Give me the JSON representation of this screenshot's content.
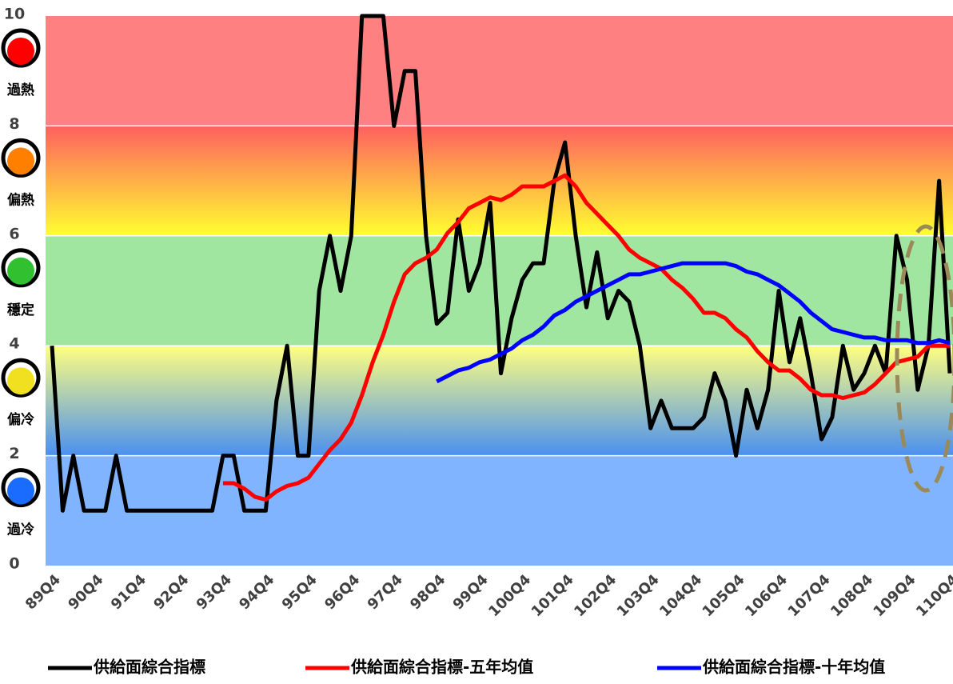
{
  "chart_data": {
    "type": "line",
    "categories": [
      "89Q4",
      null,
      null,
      null,
      "90Q4",
      null,
      null,
      null,
      "91Q4",
      null,
      null,
      null,
      "92Q4",
      null,
      null,
      null,
      "93Q4",
      null,
      null,
      null,
      "94Q4",
      null,
      null,
      null,
      "95Q4",
      null,
      null,
      null,
      "96Q4",
      null,
      null,
      null,
      "97Q4",
      null,
      null,
      null,
      "98Q4",
      null,
      null,
      null,
      "99Q4",
      null,
      null,
      null,
      "100Q4",
      null,
      null,
      null,
      "101Q4",
      null,
      null,
      null,
      "102Q4",
      null,
      null,
      null,
      "103Q4",
      null,
      null,
      null,
      "104Q4",
      null,
      null,
      null,
      "105Q4",
      null,
      null,
      null,
      "106Q4",
      null,
      null,
      null,
      "107Q4",
      null,
      null,
      null,
      "108Q4",
      null,
      null,
      null,
      "109Q4",
      null,
      null,
      null,
      "110Q4"
    ],
    "series": [
      {
        "name": "供給面綜合指標",
        "color": "#000000",
        "values": [
          4,
          1,
          2,
          1,
          1,
          1,
          2,
          1,
          1,
          1,
          1,
          1,
          1,
          1,
          1,
          1,
          2,
          2,
          1,
          1,
          1,
          3,
          4,
          2,
          2,
          5,
          6,
          5,
          6,
          10,
          10,
          10,
          8,
          9,
          9,
          6,
          4.4,
          4.6,
          6.3,
          5,
          5.5,
          6.6,
          3.5,
          4.5,
          5.2,
          5.5,
          5.5,
          7,
          7.7,
          6,
          4.7,
          5.7,
          4.5,
          5,
          4.8,
          4,
          2.5,
          3,
          2.5,
          2.5,
          2.5,
          2.7,
          3.5,
          3,
          2,
          3.2,
          2.5,
          3.2,
          5,
          3.7,
          4.5,
          3.5,
          2.3,
          2.7,
          4,
          3.2,
          3.5,
          4,
          3.5,
          6,
          5.2,
          3.2,
          4,
          7,
          3.5
        ]
      },
      {
        "name": "供給面綜合指標-五年均值",
        "color": "#ff0000",
        "values": [
          null,
          null,
          null,
          null,
          null,
          null,
          null,
          null,
          null,
          null,
          null,
          null,
          null,
          null,
          null,
          null,
          1.5,
          1.5,
          1.4,
          1.25,
          1.2,
          1.35,
          1.45,
          1.5,
          1.6,
          1.85,
          2.1,
          2.3,
          2.6,
          3.1,
          3.7,
          4.2,
          4.8,
          5.3,
          5.5,
          5.6,
          5.75,
          6.05,
          6.25,
          6.5,
          6.6,
          6.7,
          6.65,
          6.75,
          6.9,
          6.9,
          6.9,
          7.0,
          7.1,
          6.9,
          6.6,
          6.4,
          6.2,
          6.0,
          5.75,
          5.6,
          5.5,
          5.4,
          5.2,
          5.05,
          4.85,
          4.6,
          4.6,
          4.5,
          4.3,
          4.15,
          3.9,
          3.7,
          3.55,
          3.55,
          3.4,
          3.2,
          3.1,
          3.1,
          3.05,
          3.1,
          3.15,
          3.3,
          3.5,
          3.7,
          3.75,
          3.8,
          4.0,
          4.0,
          4.0
        ]
      },
      {
        "name": "供給面綜合指標-十年均值",
        "color": "#0000ff",
        "values": [
          null,
          null,
          null,
          null,
          null,
          null,
          null,
          null,
          null,
          null,
          null,
          null,
          null,
          null,
          null,
          null,
          null,
          null,
          null,
          null,
          null,
          null,
          null,
          null,
          null,
          null,
          null,
          null,
          null,
          null,
          null,
          null,
          null,
          null,
          null,
          null,
          3.35,
          3.45,
          3.55,
          3.6,
          3.7,
          3.75,
          3.85,
          3.95,
          4.1,
          4.2,
          4.35,
          4.55,
          4.65,
          4.8,
          4.9,
          5.0,
          5.1,
          5.2,
          5.3,
          5.3,
          5.35,
          5.4,
          5.45,
          5.5,
          5.5,
          5.5,
          5.5,
          5.5,
          5.45,
          5.35,
          5.3,
          5.2,
          5.1,
          4.95,
          4.8,
          4.6,
          4.45,
          4.3,
          4.25,
          4.2,
          4.15,
          4.15,
          4.1,
          4.1,
          4.1,
          4.05,
          4.05,
          4.1,
          4.05
        ]
      }
    ],
    "ylim": [
      0,
      10
    ],
    "yticks": [
      0,
      2,
      4,
      6,
      8,
      10
    ],
    "zones": [
      {
        "label": "過冷",
        "from": 0,
        "to": 2,
        "colors": [
          "#80b4ff",
          "#80b4ff"
        ],
        "lamp": "#1a6cff"
      },
      {
        "label": "偏冷",
        "from": 2,
        "to": 4,
        "colors": [
          "#ffff80",
          "#4a90f0"
        ],
        "lamp": "#f0e020"
      },
      {
        "label": "穩定",
        "from": 4,
        "to": 6,
        "colors": [
          "#a0e6a0",
          "#a0e6a0"
        ],
        "lamp": "#30c030"
      },
      {
        "label": "偏熱",
        "from": 6,
        "to": 8,
        "colors": [
          "#ff6060",
          "#ffff30"
        ],
        "lamp": "#ff8000"
      },
      {
        "label": "過熱",
        "from": 8,
        "to": 10,
        "colors": [
          "#ff8080",
          "#ff8080"
        ],
        "lamp": "#ff0000"
      }
    ],
    "legend": "bottom"
  }
}
